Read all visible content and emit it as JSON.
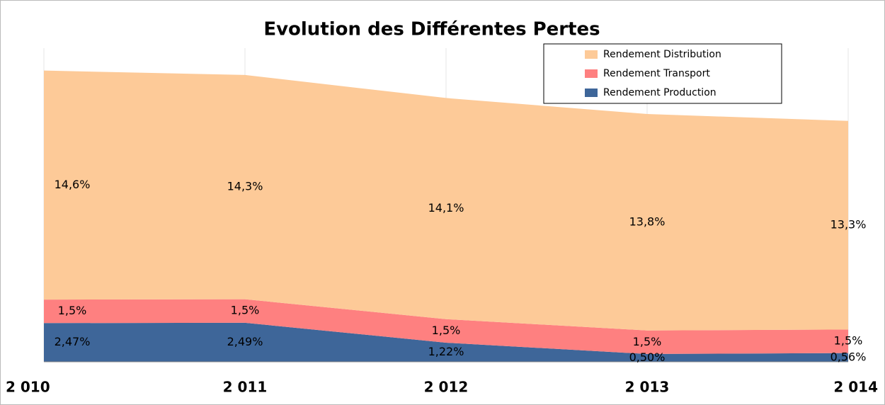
{
  "chart_data": {
    "type": "stacked_area",
    "title": "Evolution des Différentes Pertes",
    "categories": [
      "2 010",
      "2 011",
      "2 012",
      "2 013",
      "2 014"
    ],
    "series": [
      {
        "name": "Rendement Production",
        "color": "#3e6699",
        "values": [
          2.47,
          2.49,
          1.22,
          0.5,
          0.56
        ],
        "value_labels": [
          "2,47%",
          "2,49%",
          "1,22%",
          "0,50%",
          "0,56%"
        ]
      },
      {
        "name": "Rendement Transport",
        "color": "#fe8080",
        "values": [
          1.5,
          1.5,
          1.5,
          1.5,
          1.5
        ],
        "value_labels": [
          "1,5%",
          "1,5%",
          "1,5%",
          "1,5%",
          "1,5%"
        ]
      },
      {
        "name": "Rendement Distribution",
        "color": "#fdca98",
        "values": [
          14.6,
          14.3,
          14.1,
          13.8,
          13.3
        ],
        "value_labels": [
          "14,6%",
          "14,3%",
          "14,1%",
          "13,8%",
          "13,3%"
        ]
      }
    ],
    "ylim": [
      0,
      20
    ],
    "legend": "top-right"
  }
}
